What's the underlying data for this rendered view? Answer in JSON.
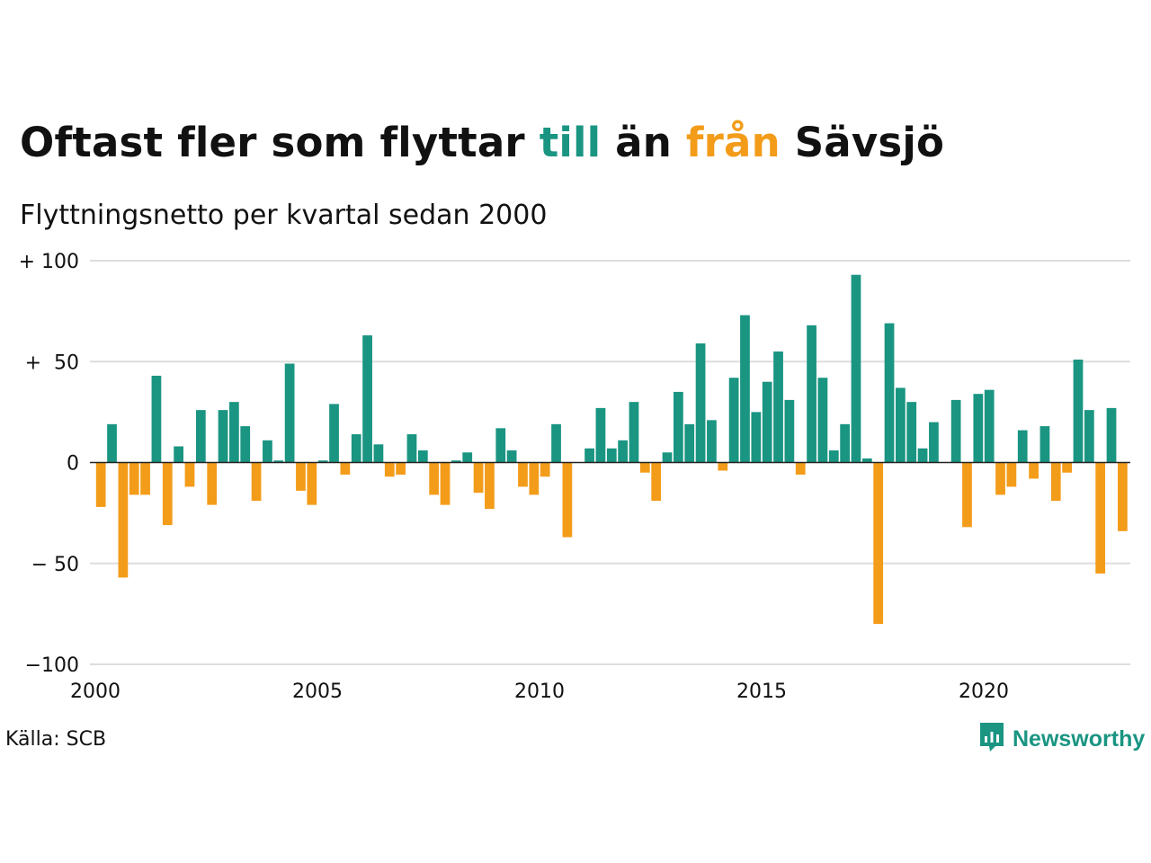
{
  "header": {
    "title_parts": [
      "Oftast fler som flyttar ",
      "till",
      " än ",
      "från",
      " Sävsjö"
    ],
    "subtitle": "Flyttningsnetto per kvartal sedan 2000"
  },
  "footer": {
    "source": "Källa: SCB",
    "brand": "Newsworthy",
    "brand_icon": "bar-chart-speech-bubble-icon"
  },
  "colors": {
    "positive": "#1a9582",
    "negative": "#f39c1a",
    "grid": "#dddddd",
    "zero_line": "#222222"
  },
  "chart_data": {
    "type": "bar",
    "title": "Oftast fler som flyttar till än från Sävsjö",
    "subtitle": "Flyttningsnetto per kvartal sedan 2000",
    "xlabel": "",
    "ylabel": "",
    "ylim": [
      -100,
      100
    ],
    "xlim": [
      2000,
      2023.5
    ],
    "y_ticks": [
      100,
      50,
      0,
      -50,
      -100
    ],
    "y_tick_labels": [
      "+ 100",
      "+  50",
      "0",
      "− 50",
      "−100"
    ],
    "x_ticks": [
      2000,
      2005,
      2010,
      2015,
      2020
    ],
    "x_tick_labels": [
      "2000",
      "2005",
      "2010",
      "2015",
      "2020"
    ],
    "grid": true,
    "legend": "none",
    "categories": [
      "2000K1",
      "2000K2",
      "2000K3",
      "2000K4",
      "2001K1",
      "2001K2",
      "2001K3",
      "2001K4",
      "2002K1",
      "2002K2",
      "2002K3",
      "2002K4",
      "2003K1",
      "2003K2",
      "2003K3",
      "2003K4",
      "2004K1",
      "2004K2",
      "2004K3",
      "2004K4",
      "2005K1",
      "2005K2",
      "2005K3",
      "2005K4",
      "2006K1",
      "2006K2",
      "2006K3",
      "2006K4",
      "2007K1",
      "2007K2",
      "2007K3",
      "2007K4",
      "2008K1",
      "2008K2",
      "2008K3",
      "2008K4",
      "2009K1",
      "2009K2",
      "2009K3",
      "2009K4",
      "2010K1",
      "2010K2",
      "2010K3",
      "2010K4",
      "2011K1",
      "2011K2",
      "2011K3",
      "2011K4",
      "2012K1",
      "2012K2",
      "2012K3",
      "2012K4",
      "2013K1",
      "2013K2",
      "2013K3",
      "2013K4",
      "2014K1",
      "2014K2",
      "2014K3",
      "2014K4",
      "2015K1",
      "2015K2",
      "2015K3",
      "2015K4",
      "2016K1",
      "2016K2",
      "2016K3",
      "2016K4",
      "2017K1",
      "2017K2",
      "2017K3",
      "2017K4",
      "2018K1",
      "2018K2",
      "2018K3",
      "2018K4",
      "2019K1",
      "2019K2",
      "2019K3",
      "2019K4",
      "2020K1",
      "2020K2",
      "2020K3",
      "2020K4",
      "2021K1",
      "2021K2",
      "2021K3",
      "2021K4",
      "2022K1",
      "2022K2",
      "2022K3",
      "2022K4",
      "2023K1",
      "2023K2",
      "2023K3",
      "2023K4"
    ],
    "values": [
      -22,
      19,
      -57,
      -16,
      -16,
      43,
      -31,
      8,
      -12,
      26,
      -21,
      26,
      30,
      18,
      -19,
      11,
      1,
      49,
      -14,
      -21,
      1,
      29,
      -6,
      14,
      63,
      9,
      -7,
      -6,
      14,
      6,
      -16,
      -21,
      1,
      5,
      -15,
      -23,
      17,
      6,
      -12,
      -16,
      -7,
      19,
      -37,
      0,
      7,
      27,
      7,
      11,
      30,
      -5,
      -19,
      5,
      35,
      19,
      59,
      21,
      -4,
      42,
      73,
      25,
      40,
      55,
      31,
      -6,
      68,
      42,
      6,
      19,
      93,
      2,
      -80,
      69,
      37,
      30,
      7,
      20,
      0,
      31,
      -32,
      34,
      36,
      -16,
      -12,
      16,
      -8,
      18,
      -19,
      -5,
      51,
      26,
      -55,
      27,
      -34,
      0,
      0,
      0
    ]
  }
}
